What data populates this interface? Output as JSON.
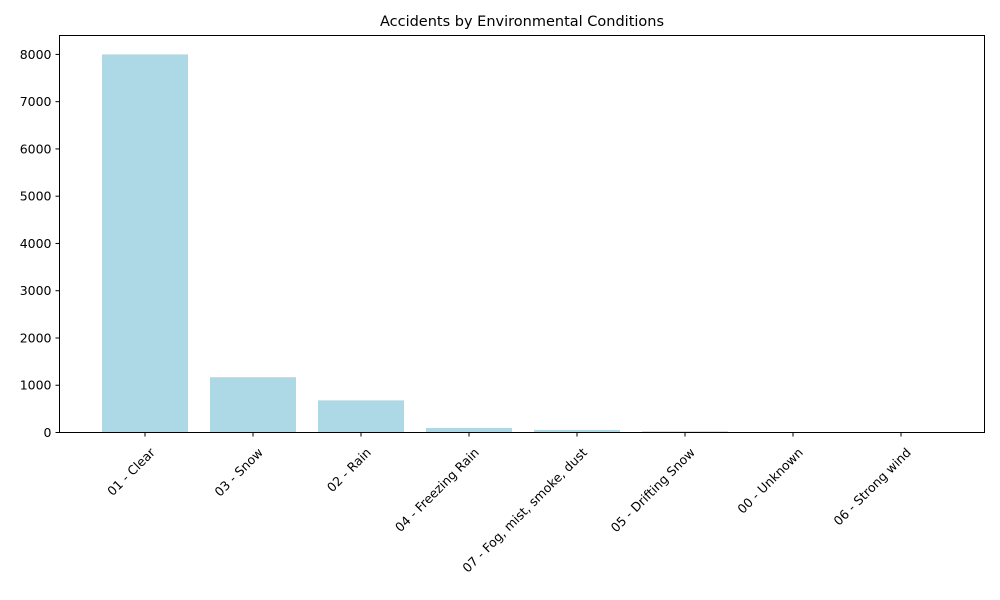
{
  "chart_data": {
    "type": "bar",
    "title": "Accidents by Environmental Conditions",
    "xlabel": "",
    "ylabel": "",
    "categories": [
      "01 - Clear",
      "03 - Snow",
      "02 - Rain",
      "04 - Freezing Rain",
      "07 - Fog, mist, smoke, dust",
      "05 - Drifting Snow",
      "00 - Unknown",
      "06 - Strong wind"
    ],
    "values": [
      8000,
      1170,
      680,
      95,
      55,
      25,
      5,
      3
    ],
    "ylim": [
      0,
      8400
    ],
    "yticks": [
      0,
      1000,
      2000,
      3000,
      4000,
      5000,
      6000,
      7000,
      8000
    ],
    "ytick_labels": [
      "0",
      "1000",
      "2000",
      "3000",
      "4000",
      "5000",
      "6000",
      "7000",
      "8000"
    ],
    "bar_color": "#add8e6",
    "grid": false,
    "legend": "none"
  }
}
